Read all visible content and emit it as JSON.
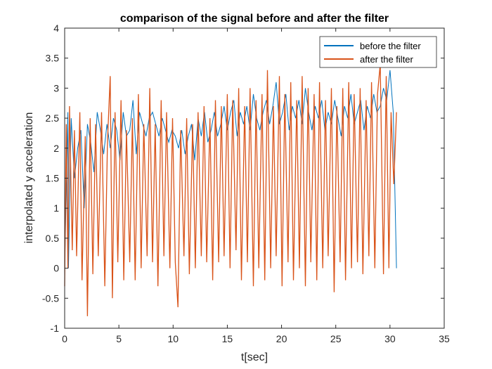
{
  "chart_data": {
    "type": "line",
    "title": "comparison of the signal before and after the filter",
    "xlabel": "t[sec]",
    "ylabel": "interpolated y acceleration",
    "xlim": [
      0,
      35
    ],
    "ylim": [
      -1,
      4
    ],
    "xticks": [
      0,
      5,
      10,
      15,
      20,
      25,
      30,
      35
    ],
    "yticks": [
      -1,
      -0.5,
      0,
      0.5,
      1,
      1.5,
      2,
      2.5,
      3,
      3.5,
      4
    ],
    "xtick_labels": [
      "0",
      "5",
      "10",
      "15",
      "20",
      "25",
      "30",
      "35"
    ],
    "ytick_labels": [
      "-1",
      "-0.5",
      "0",
      "0.5",
      "1",
      "1.5",
      "2",
      "2.5",
      "3",
      "3.5",
      "4"
    ],
    "grid": false,
    "legend_position": "top-right",
    "series": [
      {
        "name": "before the filter",
        "color": "#0072BD",
        "x": [
          0.0,
          0.3,
          0.35,
          0.6,
          0.9,
          1.2,
          1.5,
          1.8,
          2.1,
          2.4,
          2.7,
          3.0,
          3.3,
          3.6,
          3.9,
          4.2,
          4.5,
          4.8,
          5.1,
          5.4,
          5.7,
          6.0,
          6.3,
          6.6,
          6.9,
          7.2,
          7.5,
          7.8,
          8.1,
          8.4,
          8.7,
          9.0,
          9.3,
          9.6,
          9.9,
          10.2,
          10.5,
          10.8,
          11.1,
          11.4,
          11.7,
          12.0,
          12.3,
          12.6,
          12.9,
          13.2,
          13.5,
          13.8,
          14.1,
          14.4,
          14.7,
          15.0,
          15.3,
          15.6,
          15.9,
          16.2,
          16.5,
          16.8,
          17.1,
          17.4,
          17.7,
          18.0,
          18.3,
          18.6,
          18.9,
          19.2,
          19.5,
          19.8,
          20.1,
          20.4,
          20.7,
          21.0,
          21.3,
          21.6,
          21.9,
          22.2,
          22.5,
          22.8,
          23.1,
          23.4,
          23.7,
          24.0,
          24.3,
          24.6,
          24.9,
          25.2,
          25.5,
          25.8,
          26.1,
          26.4,
          26.7,
          27.0,
          27.3,
          27.6,
          27.9,
          28.2,
          28.5,
          28.8,
          29.1,
          29.4,
          29.7,
          30.0,
          30.3,
          30.6
        ],
        "y": [
          0.0,
          2.6,
          0.0,
          2.5,
          1.5,
          2.0,
          2.3,
          1.0,
          2.4,
          2.1,
          1.6,
          2.6,
          2.3,
          1.9,
          2.4,
          2.0,
          2.5,
          2.3,
          1.8,
          2.6,
          2.2,
          2.3,
          2.8,
          1.9,
          2.6,
          2.4,
          2.2,
          2.5,
          2.6,
          2.4,
          2.2,
          2.5,
          2.3,
          2.1,
          2.3,
          2.2,
          2.0,
          2.3,
          1.9,
          2.2,
          2.4,
          1.8,
          2.5,
          2.2,
          2.6,
          2.1,
          2.3,
          2.6,
          2.2,
          2.4,
          2.7,
          2.3,
          2.6,
          2.8,
          2.2,
          2.6,
          2.4,
          2.7,
          2.3,
          2.9,
          2.5,
          2.3,
          2.6,
          2.8,
          2.4,
          2.7,
          3.1,
          2.4,
          2.6,
          2.9,
          2.3,
          2.7,
          2.5,
          2.8,
          2.4,
          3.0,
          2.6,
          2.3,
          2.7,
          2.5,
          2.8,
          2.3,
          2.6,
          2.4,
          2.8,
          2.5,
          2.2,
          2.7,
          2.5,
          2.9,
          2.4,
          2.6,
          2.8,
          2.3,
          2.7,
          2.5,
          2.9,
          2.6,
          2.7,
          3.0,
          2.8,
          3.3,
          2.6,
          0.0
        ]
      },
      {
        "name": "after the filter",
        "color": "#D95319",
        "x": [
          0.0,
          0.15,
          0.3,
          0.45,
          0.7,
          0.9,
          1.1,
          1.4,
          1.6,
          1.9,
          2.1,
          2.35,
          2.6,
          2.85,
          3.1,
          3.4,
          3.7,
          3.95,
          4.2,
          4.4,
          4.65,
          4.9,
          5.2,
          5.45,
          5.7,
          6.0,
          6.25,
          6.5,
          6.8,
          7.05,
          7.3,
          7.6,
          7.85,
          8.1,
          8.35,
          8.6,
          8.9,
          9.15,
          9.4,
          9.7,
          9.95,
          10.2,
          10.45,
          10.7,
          11.0,
          11.25,
          11.5,
          11.8,
          12.05,
          12.3,
          12.6,
          12.85,
          13.1,
          13.4,
          13.65,
          13.9,
          14.2,
          14.45,
          14.7,
          15.0,
          15.25,
          15.5,
          15.8,
          16.05,
          16.3,
          16.6,
          16.85,
          17.1,
          17.4,
          17.65,
          17.9,
          18.2,
          18.45,
          18.7,
          19.0,
          19.25,
          19.5,
          19.8,
          20.05,
          20.3,
          20.6,
          20.85,
          21.1,
          21.4,
          21.65,
          21.9,
          22.2,
          22.45,
          22.7,
          23.0,
          23.25,
          23.5,
          23.8,
          24.05,
          24.3,
          24.6,
          24.85,
          25.1,
          25.4,
          25.65,
          25.9,
          26.2,
          26.45,
          26.7,
          27.0,
          27.25,
          27.5,
          27.8,
          28.05,
          28.3,
          28.6,
          28.85,
          29.1,
          29.4,
          29.65,
          29.9,
          30.1,
          30.35,
          30.6
        ],
        "y": [
          -0.3,
          2.4,
          0.0,
          2.7,
          0.3,
          2.3,
          0.2,
          2.6,
          -0.2,
          2.2,
          -0.8,
          2.5,
          -0.1,
          2.4,
          0.2,
          2.6,
          -0.3,
          2.1,
          3.2,
          -0.5,
          2.6,
          0.1,
          2.8,
          -0.2,
          2.3,
          0.1,
          2.5,
          -0.2,
          2.9,
          0.0,
          2.4,
          0.2,
          3.0,
          0.1,
          2.4,
          -0.3,
          2.8,
          0.2,
          2.6,
          0.0,
          2.5,
          0.1,
          -0.65,
          2.3,
          0.2,
          2.5,
          -0.1,
          2.4,
          0.0,
          2.6,
          0.2,
          2.7,
          0.1,
          2.5,
          -0.2,
          2.8,
          0.1,
          2.7,
          0.2,
          2.9,
          0.0,
          2.8,
          0.3,
          3.0,
          -0.2,
          2.7,
          0.1,
          3.0,
          -0.3,
          2.8,
          0.0,
          2.9,
          -0.2,
          3.3,
          0.0,
          2.7,
          0.2,
          3.2,
          -0.3,
          2.9,
          0.1,
          3.1,
          -0.2,
          2.8,
          0.0,
          3.2,
          -0.3,
          3.0,
          0.1,
          2.9,
          -0.2,
          3.1,
          0.0,
          2.8,
          0.2,
          3.0,
          -0.4,
          2.7,
          0.1,
          3.0,
          -0.2,
          3.1,
          0.0,
          2.9,
          0.1,
          3.0,
          -0.1,
          2.8,
          0.2,
          3.1,
          0.0,
          2.9,
          3.4,
          -0.1,
          3.2,
          0.0,
          2.6,
          1.4,
          2.6
        ]
      }
    ]
  }
}
